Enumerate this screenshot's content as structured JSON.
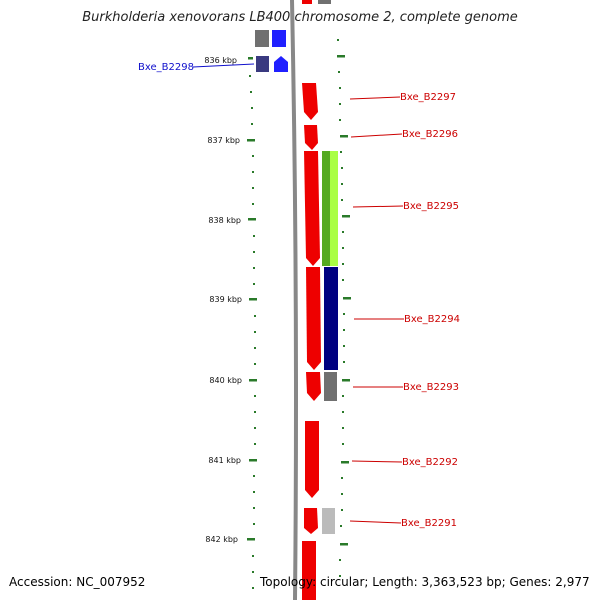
{
  "title": "Burkholderia xenovorans LB400 chromosome 2, complete genome",
  "accession_text": "Accession: NC_007952",
  "topology_text": "Topology: circular; Length: 3,363,523 bp; Genes: 2,977",
  "ruler": {
    "unit": "kbp",
    "ticks": [
      "836 kbp",
      "837 kbp",
      "838 kbp",
      "839 kbp",
      "840 kbp",
      "841 kbp",
      "842 kbp"
    ]
  },
  "colors": {
    "forward_gene": "#ee0000",
    "reverse_gene": "#2020ff",
    "ruler_dash": "#2a7a2a",
    "label_red": "#cc0000",
    "label_blue": "#1010cc",
    "backbone": "#888888"
  },
  "genes": [
    {
      "label": "Bxe_B2298",
      "strand": "reverse",
      "label_color": "blue"
    },
    {
      "label": "Bxe_B2297",
      "strand": "forward"
    },
    {
      "label": "Bxe_B2296",
      "strand": "forward"
    },
    {
      "label": "Bxe_B2295",
      "strand": "forward"
    },
    {
      "label": "Bxe_B2294",
      "strand": "forward"
    },
    {
      "label": "Bxe_B2293",
      "strand": "forward"
    },
    {
      "label": "Bxe_B2292",
      "strand": "forward"
    },
    {
      "label": "Bxe_B2291",
      "strand": "forward"
    }
  ],
  "feature_colors": {
    "grey": "#707070",
    "light_grey": "#bbbbbb",
    "navy": "#3a3a80",
    "green": "#55aa22",
    "light_green": "#aaff44",
    "dark_blue": "#000080"
  }
}
